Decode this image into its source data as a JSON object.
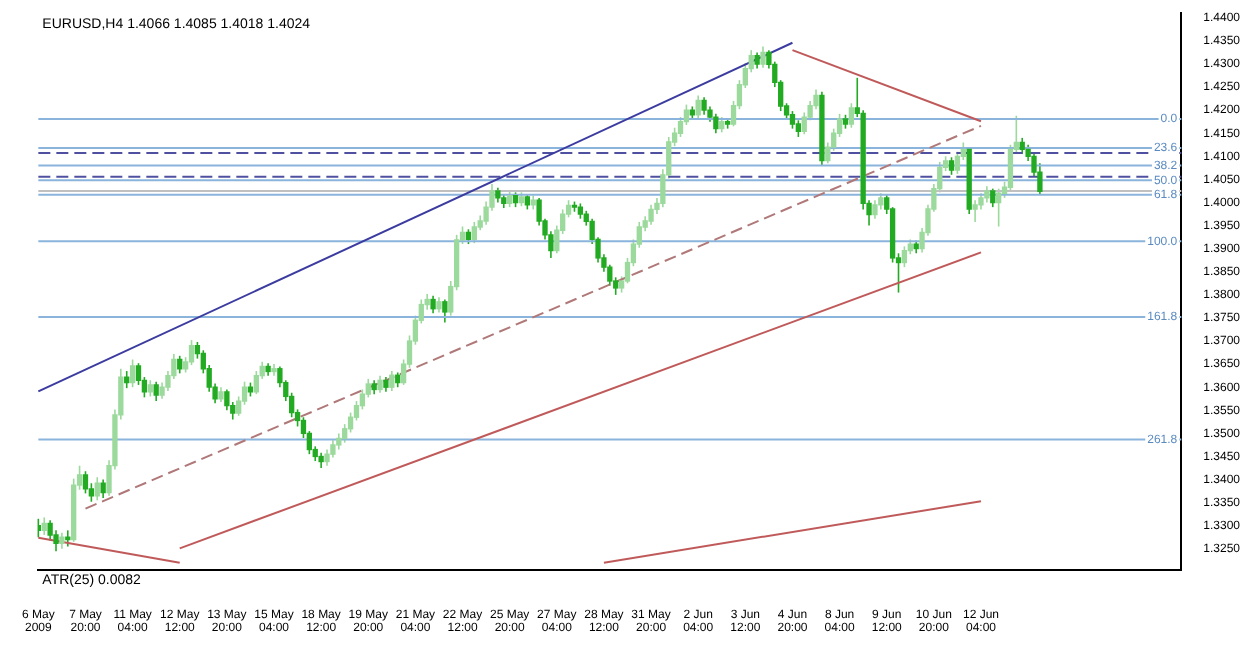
{
  "chart_data": {
    "type": "candlestick",
    "title": "EURUSD,H4 1.4066 1.4085 1.4018 1.4024",
    "colors": [
      "#22aa22",
      "#9cd99c",
      "#22aa22",
      "#22aa22",
      "#9cd99c",
      "#22aa22",
      "#9cd99c",
      "#9cd99c",
      "#22aa22",
      "#22aa22",
      "#9cd99c",
      "#22aa22",
      "#9cd99c",
      "#9cd99c",
      "#9cd99c",
      "#22aa22",
      "#9cd99c",
      "#22aa22",
      "#22aa22",
      "#9cd99c",
      "#22aa22",
      "#9cd99c",
      "#9cd99c",
      "#9cd99c",
      "#22aa22",
      "#9cd99c",
      "#9cd99c",
      "#22aa22",
      "#22aa22",
      "#22aa22",
      "#22aa22",
      "#9cd99c",
      "#22aa22",
      "#22aa22",
      "#9cd99c",
      "#9cd99c",
      "#22aa22",
      "#9cd99c",
      "#9cd99c",
      "#22aa22",
      "#9cd99c",
      "#22aa22",
      "#22aa22",
      "#22aa22",
      "#22aa22",
      "#22aa22",
      "#22aa22",
      "#22aa22",
      "#22aa22",
      "#9cd99c",
      "#9cd99c",
      "#9cd99c",
      "#9cd99c",
      "#9cd99c",
      "#9cd99c",
      "#9cd99c",
      "#9cd99c",
      "#22aa22",
      "#9cd99c",
      "#22aa22",
      "#9cd99c",
      "#22aa22",
      "#9cd99c",
      "#9cd99c",
      "#9cd99c",
      "#9cd99c",
      "#9cd99c",
      "#22aa22",
      "#9cd99c",
      "#22aa22",
      "#9cd99c",
      "#9cd99c",
      "#9cd99c",
      "#22aa22",
      "#9cd99c",
      "#9cd99c",
      "#9cd99c",
      "#9cd99c",
      "#22aa22",
      "#22aa22",
      "#9cd99c",
      "#22aa22",
      "#9cd99c",
      "#22aa22",
      "#9cd99c",
      "#22aa22",
      "#22aa22",
      "#22aa22",
      "#9cd99c",
      "#9cd99c",
      "#9cd99c",
      "#22aa22",
      "#22aa22",
      "#22aa22",
      "#22aa22",
      "#22aa22",
      "#22aa22",
      "#22aa22",
      "#22aa22",
      "#9cd99c",
      "#9cd99c",
      "#9cd99c",
      "#9cd99c",
      "#9cd99c",
      "#9cd99c",
      "#9cd99c",
      "#9cd99c",
      "#9cd99c",
      "#9cd99c",
      "#9cd99c",
      "#9cd99c",
      "#22aa22",
      "#9cd99c",
      "#22aa22",
      "#22aa22",
      "#22aa22",
      "#9cd99c",
      "#22aa22",
      "#9cd99c",
      "#9cd99c",
      "#9cd99c",
      "#9cd99c",
      "#22aa22",
      "#9cd99c",
      "#22aa22",
      "#22aa22",
      "#22aa22",
      "#22aa22",
      "#22aa22",
      "#22aa22",
      "#9cd99c",
      "#9cd99c",
      "#9cd99c",
      "#22aa22",
      "#9cd99c",
      "#9cd99c",
      "#9cd99c",
      "#22aa22",
      "#9cd99c",
      "#22aa22",
      "#22aa22",
      "#22aa22",
      "#9cd99c",
      "#9cd99c",
      "#22aa22",
      "#22aa22",
      "#22aa22",
      "#9cd99c",
      "#9cd99c",
      "#22aa22",
      "#9cd99c",
      "#9cd99c",
      "#9cd99c",
      "#9cd99c",
      "#9cd99c",
      "#22aa22",
      "#9cd99c",
      "#9cd99c",
      "#22aa22",
      "#9cd99c",
      "#9cd99c",
      "#9cd99c",
      "#22aa22",
      "#9cd99c",
      "#9cd99c",
      "#9cd99c",
      "#9cd99c",
      "#22aa22",
      "#22aa22",
      "#22aa22",
      "#22aa22",
      null,
      null,
      null,
      null,
      null,
      null,
      null,
      null,
      null,
      null,
      null,
      null,
      null,
      null,
      null,
      null,
      null,
      null,
      null,
      null,
      null,
      null,
      null,
      null
    ],
    "categories": [
      "6 May 2009",
      null,
      null,
      null,
      null,
      null,
      null,
      null,
      "7 May 20:00",
      null,
      null,
      null,
      null,
      null,
      null,
      null,
      "11 May 04:00",
      null,
      null,
      null,
      null,
      null,
      null,
      null,
      "12 May 12:00",
      null,
      null,
      null,
      null,
      null,
      null,
      null,
      "13 May 20:00",
      null,
      null,
      null,
      null,
      null,
      null,
      null,
      "15 May 04:00",
      null,
      null,
      null,
      null,
      null,
      null,
      null,
      "18 May 12:00",
      null,
      null,
      null,
      null,
      null,
      null,
      null,
      "19 May 20:00",
      null,
      null,
      null,
      null,
      null,
      null,
      null,
      "21 May 04:00",
      null,
      null,
      null,
      null,
      null,
      null,
      null,
      "22 May 12:00",
      null,
      null,
      null,
      null,
      null,
      null,
      null,
      "25 May 20:00",
      null,
      null,
      null,
      null,
      null,
      null,
      null,
      "27 May 04:00",
      null,
      null,
      null,
      null,
      null,
      null,
      null,
      "28 May 12:00",
      null,
      null,
      null,
      null,
      null,
      null,
      null,
      "31 May 20:00",
      null,
      null,
      null,
      null,
      null,
      null,
      null,
      "2 Jun 04:00",
      null,
      null,
      null,
      null,
      null,
      null,
      null,
      "3 Jun 12:00",
      null,
      null,
      null,
      null,
      null,
      null,
      null,
      "4 Jun 20:00",
      null,
      null,
      null,
      null,
      null,
      null,
      null,
      "8 Jun 04:00",
      null,
      null,
      null,
      null,
      null,
      null,
      null,
      "9 Jun 12:00",
      null,
      null,
      null,
      null,
      null,
      null,
      null,
      "10 Jun 20:00",
      null,
      null,
      null,
      null,
      null,
      null,
      null,
      "12 Jun 04:00",
      null,
      null,
      null,
      null,
      null,
      null,
      null,
      null,
      null,
      null,
      null,
      null,
      null,
      null,
      null,
      null,
      null,
      null,
      null,
      null,
      null,
      null,
      null,
      null,
      null,
      null,
      null,
      null,
      null,
      null,
      null,
      null,
      null,
      null
    ],
    "ohlc": [
      [
        1.33,
        1.3315,
        1.3275,
        1.329
      ],
      [
        1.329,
        1.3318,
        1.328,
        1.3305
      ],
      [
        1.3305,
        1.3312,
        1.3268,
        1.328
      ],
      [
        1.328,
        1.329,
        1.3245,
        1.3262
      ],
      [
        1.3262,
        1.3285,
        1.325,
        1.3275
      ],
      [
        1.3275,
        1.329,
        1.3255,
        1.327
      ],
      [
        1.327,
        1.3402,
        1.3265,
        1.3388
      ],
      [
        1.3388,
        1.343,
        1.3378,
        1.341
      ],
      [
        1.341,
        1.3418,
        1.337,
        1.338
      ],
      [
        1.338,
        1.3392,
        1.3352,
        1.3365
      ],
      [
        1.3365,
        1.3405,
        1.3355,
        1.3392
      ],
      [
        1.3392,
        1.34,
        1.336,
        1.3372
      ],
      [
        1.3372,
        1.3442,
        1.3365,
        1.343
      ],
      [
        1.343,
        1.3552,
        1.3422,
        1.354
      ],
      [
        1.354,
        1.364,
        1.353,
        1.3622
      ],
      [
        1.3622,
        1.3635,
        1.3598,
        1.361
      ],
      [
        1.361,
        1.366,
        1.36,
        1.3646
      ],
      [
        1.3646,
        1.3652,
        1.3605,
        1.3615
      ],
      [
        1.3615,
        1.3622,
        1.3578,
        1.359
      ],
      [
        1.359,
        1.3615,
        1.358,
        1.3605
      ],
      [
        1.3605,
        1.3612,
        1.357,
        1.3583
      ],
      [
        1.3583,
        1.361,
        1.3575,
        1.36
      ],
      [
        1.36,
        1.3635,
        1.3592,
        1.3625
      ],
      [
        1.3625,
        1.3672,
        1.3618,
        1.366
      ],
      [
        1.366,
        1.3668,
        1.363,
        1.364
      ],
      [
        1.364,
        1.3665,
        1.3632,
        1.3655
      ],
      [
        1.3655,
        1.3702,
        1.3648,
        1.369
      ],
      [
        1.369,
        1.3698,
        1.3662,
        1.3673
      ],
      [
        1.3673,
        1.368,
        1.363,
        1.364
      ],
      [
        1.364,
        1.3648,
        1.359,
        1.36
      ],
      [
        1.36,
        1.3608,
        1.3565,
        1.3575
      ],
      [
        1.3575,
        1.36,
        1.3568,
        1.359
      ],
      [
        1.359,
        1.3595,
        1.355,
        1.356
      ],
      [
        1.356,
        1.3568,
        1.353,
        1.3544
      ],
      [
        1.3544,
        1.358,
        1.3538,
        1.357
      ],
      [
        1.357,
        1.3612,
        1.3562,
        1.36
      ],
      [
        1.36,
        1.361,
        1.358,
        1.359
      ],
      [
        1.359,
        1.3635,
        1.3585,
        1.3625
      ],
      [
        1.3625,
        1.3655,
        1.3618,
        1.3645
      ],
      [
        1.3645,
        1.3652,
        1.3625,
        1.3634
      ],
      [
        1.3634,
        1.365,
        1.3625,
        1.364
      ],
      [
        1.364,
        1.3645,
        1.36,
        1.361
      ],
      [
        1.361,
        1.3615,
        1.357,
        1.358
      ],
      [
        1.358,
        1.3588,
        1.3535,
        1.3545
      ],
      [
        1.3545,
        1.3552,
        1.3515,
        1.3528
      ],
      [
        1.3528,
        1.3535,
        1.349,
        1.35
      ],
      [
        1.35,
        1.3505,
        1.3455,
        1.3465
      ],
      [
        1.3465,
        1.3472,
        1.344,
        1.345
      ],
      [
        1.345,
        1.3458,
        1.3425,
        1.3439
      ],
      [
        1.3439,
        1.3465,
        1.343,
        1.3455
      ],
      [
        1.3455,
        1.3485,
        1.3448,
        1.3475
      ],
      [
        1.3475,
        1.35,
        1.3465,
        1.3489
      ],
      [
        1.3489,
        1.352,
        1.348,
        1.351
      ],
      [
        1.351,
        1.3545,
        1.3502,
        1.3535
      ],
      [
        1.3535,
        1.357,
        1.3528,
        1.356
      ],
      [
        1.356,
        1.3595,
        1.3552,
        1.3585
      ],
      [
        1.3585,
        1.3618,
        1.3578,
        1.3607
      ],
      [
        1.3607,
        1.3615,
        1.3585,
        1.3595
      ],
      [
        1.3595,
        1.3625,
        1.3588,
        1.3615
      ],
      [
        1.3615,
        1.3622,
        1.359,
        1.36
      ],
      [
        1.36,
        1.3635,
        1.3592,
        1.3626
      ],
      [
        1.3626,
        1.3632,
        1.36,
        1.361
      ],
      [
        1.361,
        1.366,
        1.3605,
        1.365
      ],
      [
        1.365,
        1.3712,
        1.3642,
        1.37
      ],
      [
        1.37,
        1.3755,
        1.3692,
        1.3745
      ],
      [
        1.3745,
        1.379,
        1.3738,
        1.3779
      ],
      [
        1.3779,
        1.3802,
        1.3768,
        1.379
      ],
      [
        1.379,
        1.3798,
        1.376,
        1.377
      ],
      [
        1.377,
        1.3795,
        1.3762,
        1.3785
      ],
      [
        1.3785,
        1.379,
        1.374,
        1.3763
      ],
      [
        1.3763,
        1.383,
        1.3755,
        1.3818
      ],
      [
        1.3818,
        1.393,
        1.381,
        1.3919
      ],
      [
        1.3919,
        1.3948,
        1.391,
        1.3935
      ],
      [
        1.3935,
        1.3942,
        1.391,
        1.392
      ],
      [
        1.392,
        1.3958,
        1.3912,
        1.3947
      ],
      [
        1.3947,
        1.3972,
        1.394,
        1.396
      ],
      [
        1.396,
        1.4002,
        1.3952,
        1.399
      ],
      [
        1.399,
        1.404,
        1.3982,
        1.4025
      ],
      [
        1.4025,
        1.4032,
        1.4,
        1.401
      ],
      [
        1.401,
        1.4018,
        1.3988,
        1.3998
      ],
      [
        1.3998,
        1.4025,
        1.399,
        1.4015
      ],
      [
        1.4015,
        1.4022,
        1.399,
        1.4
      ],
      [
        1.4,
        1.4022,
        1.3992,
        1.4012
      ],
      [
        1.4012,
        1.4018,
        1.3985,
        1.3995
      ],
      [
        1.3995,
        1.4015,
        1.3985,
        1.4005
      ],
      [
        1.4005,
        1.401,
        1.395,
        1.396
      ],
      [
        1.396,
        1.3965,
        1.392,
        1.393
      ],
      [
        1.393,
        1.3938,
        1.388,
        1.3896
      ],
      [
        1.3896,
        1.395,
        1.389,
        1.394
      ],
      [
        1.394,
        1.3985,
        1.3932,
        1.3975
      ],
      [
        1.3975,
        1.4005,
        1.3968,
        1.3994
      ],
      [
        1.3994,
        1.4002,
        1.398,
        1.399
      ],
      [
        1.399,
        1.3998,
        1.3965,
        1.3975
      ],
      [
        1.3975,
        1.3982,
        1.395,
        1.3959
      ],
      [
        1.3959,
        1.3965,
        1.391,
        1.392
      ],
      [
        1.392,
        1.3925,
        1.387,
        1.388
      ],
      [
        1.388,
        1.3888,
        1.385,
        1.386
      ],
      [
        1.386,
        1.3865,
        1.382,
        1.383
      ],
      [
        1.383,
        1.3838,
        1.38,
        1.3815
      ],
      [
        1.3815,
        1.384,
        1.3805,
        1.383
      ],
      [
        1.383,
        1.388,
        1.3825,
        1.387
      ],
      [
        1.387,
        1.392,
        1.3862,
        1.391
      ],
      [
        1.391,
        1.3958,
        1.3902,
        1.3947
      ],
      [
        1.3947,
        1.397,
        1.3938,
        1.396
      ],
      [
        1.396,
        1.3995,
        1.3952,
        1.3985
      ],
      [
        1.3985,
        1.401,
        1.3975,
        1.3998
      ],
      [
        1.3998,
        1.4072,
        1.399,
        1.406
      ],
      [
        1.406,
        1.4142,
        1.4052,
        1.4131
      ],
      [
        1.4131,
        1.4162,
        1.4122,
        1.415
      ],
      [
        1.415,
        1.4185,
        1.4142,
        1.4175
      ],
      [
        1.4175,
        1.4212,
        1.4168,
        1.42
      ],
      [
        1.42,
        1.4208,
        1.418,
        1.419
      ],
      [
        1.419,
        1.4232,
        1.4182,
        1.4221
      ],
      [
        1.4221,
        1.4228,
        1.419,
        1.42
      ],
      [
        1.42,
        1.4208,
        1.4175,
        1.4185
      ],
      [
        1.4185,
        1.4192,
        1.415,
        1.416
      ],
      [
        1.416,
        1.4185,
        1.4152,
        1.4175
      ],
      [
        1.4175,
        1.4182,
        1.416,
        1.417
      ],
      [
        1.417,
        1.422,
        1.4165,
        1.421
      ],
      [
        1.421,
        1.4265,
        1.4202,
        1.4255
      ],
      [
        1.4255,
        1.4302,
        1.4248,
        1.429
      ],
      [
        1.429,
        1.433,
        1.4282,
        1.4318
      ],
      [
        1.4318,
        1.4325,
        1.429,
        1.43
      ],
      [
        1.43,
        1.4338,
        1.4292,
        1.4325
      ],
      [
        1.4325,
        1.433,
        1.429,
        1.4299
      ],
      [
        1.4299,
        1.4305,
        1.425,
        1.426
      ],
      [
        1.426,
        1.4265,
        1.4198,
        1.4209
      ],
      [
        1.4209,
        1.4215,
        1.418,
        1.419
      ],
      [
        1.419,
        1.4198,
        1.416,
        1.417
      ],
      [
        1.417,
        1.4178,
        1.4142,
        1.4154
      ],
      [
        1.4154,
        1.4195,
        1.4148,
        1.4185
      ],
      [
        1.4185,
        1.422,
        1.4178,
        1.421
      ],
      [
        1.421,
        1.4245,
        1.4202,
        1.4232
      ],
      [
        1.4232,
        1.424,
        1.408,
        1.4091
      ],
      [
        1.4091,
        1.413,
        1.4085,
        1.412
      ],
      [
        1.412,
        1.416,
        1.4112,
        1.415
      ],
      [
        1.415,
        1.4192,
        1.4142,
        1.4181
      ],
      [
        1.4181,
        1.419,
        1.416,
        1.417
      ],
      [
        1.417,
        1.4215,
        1.4162,
        1.4205
      ],
      [
        1.4205,
        1.427,
        1.4185,
        1.4193
      ],
      [
        1.4193,
        1.42,
        1.3985,
        1.3998
      ],
      [
        1.3998,
        1.4005,
        1.395,
        1.3974
      ],
      [
        1.3974,
        1.4005,
        1.3965,
        1.3995
      ],
      [
        1.3995,
        1.402,
        1.3985,
        1.401
      ],
      [
        1.401,
        1.4018,
        1.3975,
        1.3986
      ],
      [
        1.3986,
        1.399,
        1.387,
        1.388
      ],
      [
        1.388,
        1.389,
        1.3805,
        1.387
      ],
      [
        1.387,
        1.3905,
        1.386,
        1.3896
      ],
      [
        1.3896,
        1.392,
        1.3888,
        1.391
      ],
      [
        1.391,
        1.3918,
        1.389,
        1.39
      ],
      [
        1.39,
        1.3945,
        1.3892,
        1.3935
      ],
      [
        1.3935,
        1.3995,
        1.3928,
        1.3986
      ],
      [
        1.3986,
        1.404,
        1.398,
        1.403
      ],
      [
        1.403,
        1.4088,
        1.4022,
        1.4076
      ],
      [
        1.4076,
        1.41,
        1.4068,
        1.409
      ],
      [
        1.409,
        1.4098,
        1.406,
        1.407
      ],
      [
        1.407,
        1.411,
        1.4062,
        1.41
      ],
      [
        1.41,
        1.413,
        1.4092,
        1.4115
      ],
      [
        1.4115,
        1.412,
        1.3975,
        1.3986
      ],
      [
        1.3986,
        1.4005,
        1.3958,
        1.3995
      ],
      [
        1.3995,
        1.402,
        1.3985,
        1.401
      ],
      [
        1.401,
        1.4035,
        1.4,
        1.4025
      ],
      [
        1.4025,
        1.403,
        1.399,
        1.4
      ],
      [
        1.4,
        1.403,
        1.3948,
        1.402
      ],
      [
        1.402,
        1.4045,
        1.401,
        1.4033
      ],
      [
        1.4033,
        1.4125,
        1.4025,
        1.4115
      ],
      [
        1.4115,
        1.4188,
        1.4105,
        1.413
      ],
      [
        1.413,
        1.414,
        1.4105,
        1.4115
      ],
      [
        1.4115,
        1.4125,
        1.409,
        1.41
      ],
      [
        1.41,
        1.4105,
        1.4055,
        1.4066
      ],
      [
        1.4066,
        1.4085,
        1.4018,
        1.4024
      ],
      null,
      null,
      null,
      null,
      null,
      null,
      null,
      null,
      null,
      null,
      null,
      null,
      null,
      null,
      null,
      null,
      null,
      null,
      null,
      null,
      null,
      null,
      null,
      null
    ],
    "series": [
      {
        "type": "line",
        "x": [
          "6 May 2009",
          "4 Jun 20:00"
        ],
        "values": [
          1.3591,
          1.4346
        ],
        "color": "#3c3ca0"
      },
      {
        "type": "line",
        "x": [
          "7 May 20:00",
          "12 Jun 04:00"
        ],
        "values": [
          1.3337,
          1.4166
        ],
        "color": "#b07878",
        "line_style": "dashed"
      },
      {
        "type": "line",
        "x": [
          "12 May 12:00",
          "12 Jun 04:00"
        ],
        "values": [
          1.3251,
          1.3892
        ],
        "color": "#c05a5a"
      },
      {
        "type": "line",
        "x": [
          "4 Jun 20:00",
          "12 Jun 04:00"
        ],
        "values": [
          1.433,
          1.4176
        ],
        "color": "#c05a5a"
      },
      {
        "type": "line",
        "x": [
          "28 May 12:00",
          "12 Jun 04:00"
        ],
        "values": [
          1.322,
          1.3353
        ],
        "color": "#c05a5a"
      },
      {
        "type": "line",
        "x": [
          "6 May 2009",
          "12 May 12:00"
        ],
        "values": [
          1.3274,
          1.322
        ],
        "color": "#c05a5a"
      }
    ],
    "ref_lines": [
      {
        "axis": "y",
        "value": 1.4181,
        "label": null,
        "color": "#8ab4dc"
      },
      {
        "axis": "y",
        "value": 1.4118,
        "label": null,
        "color": "#8ab4dc"
      },
      {
        "axis": "y",
        "value": 1.408,
        "label": null,
        "color": "#8ab4dc"
      },
      {
        "axis": "y",
        "value": 1.4048,
        "label": null,
        "color": "#8ab4dc"
      },
      {
        "axis": "y",
        "value": 1.4017,
        "label": null,
        "color": "#8ab4dc"
      },
      {
        "axis": "y",
        "value": 1.3916,
        "label": null,
        "color": "#8ab4dc"
      },
      {
        "axis": "y",
        "value": 1.3752,
        "label": null,
        "color": "#8ab4dc"
      },
      {
        "axis": "y",
        "value": 1.3487,
        "label": null,
        "color": "#8ab4dc"
      },
      {
        "axis": "y",
        "value": 1.4107,
        "label": null,
        "color": "#5050a0",
        "line_style": "dashed"
      },
      {
        "axis": "y",
        "value": 1.4056,
        "label": null,
        "color": "#5050a0",
        "line_style": "dashed"
      },
      {
        "axis": "y",
        "value": 1.4025,
        "label": null,
        "color": "#c0c0c0"
      }
    ],
    "annotations": [
      "ATR(25) 0.0082",
      {
        "text": "0.0",
        "y": 1.4181
      },
      {
        "text": "23.6",
        "y": 1.4118
      },
      {
        "text": "38.2",
        "y": 1.408
      },
      {
        "text": "50.0",
        "y": 1.4048
      },
      {
        "text": "61.8",
        "y": 1.4017
      },
      {
        "text": "100.0",
        "y": 1.3916
      },
      {
        "text": "161.8",
        "y": 1.3752
      },
      {
        "text": "261.8",
        "y": 1.3487
      }
    ],
    "ylim": [
      1.3205,
      1.441
    ],
    "yticks": [
      {
        "value": 1.325,
        "label": "1.3250"
      },
      {
        "value": 1.33,
        "label": "1.3300"
      },
      {
        "value": 1.335,
        "label": "1.3350"
      },
      {
        "value": 1.34,
        "label": "1.3400"
      },
      {
        "value": 1.345,
        "label": "1.3450"
      },
      {
        "value": 1.35,
        "label": "1.3500"
      },
      {
        "value": 1.355,
        "label": "1.3550"
      },
      {
        "value": 1.36,
        "label": "1.3600"
      },
      {
        "value": 1.365,
        "label": "1.3650"
      },
      {
        "value": 1.37,
        "label": "1.3700"
      },
      {
        "value": 1.375,
        "label": "1.3750"
      },
      {
        "value": 1.38,
        "label": "1.3800"
      },
      {
        "value": 1.385,
        "label": "1.3850"
      },
      {
        "value": 1.39,
        "label": "1.3900"
      },
      {
        "value": 1.395,
        "label": "1.3950"
      },
      {
        "value": 1.4,
        "label": "1.4000"
      },
      {
        "value": 1.405,
        "label": "1.4050"
      },
      {
        "value": 1.41,
        "label": "1.4100"
      },
      {
        "value": 1.415,
        "label": "1.4150"
      },
      {
        "value": 1.42,
        "label": "1.4200"
      },
      {
        "value": 1.425,
        "label": "1.4250"
      },
      {
        "value": 1.43,
        "label": "1.4300"
      },
      {
        "value": 1.435,
        "label": "1.4350"
      },
      {
        "value": 1.44,
        "label": "1.4400"
      }
    ]
  }
}
